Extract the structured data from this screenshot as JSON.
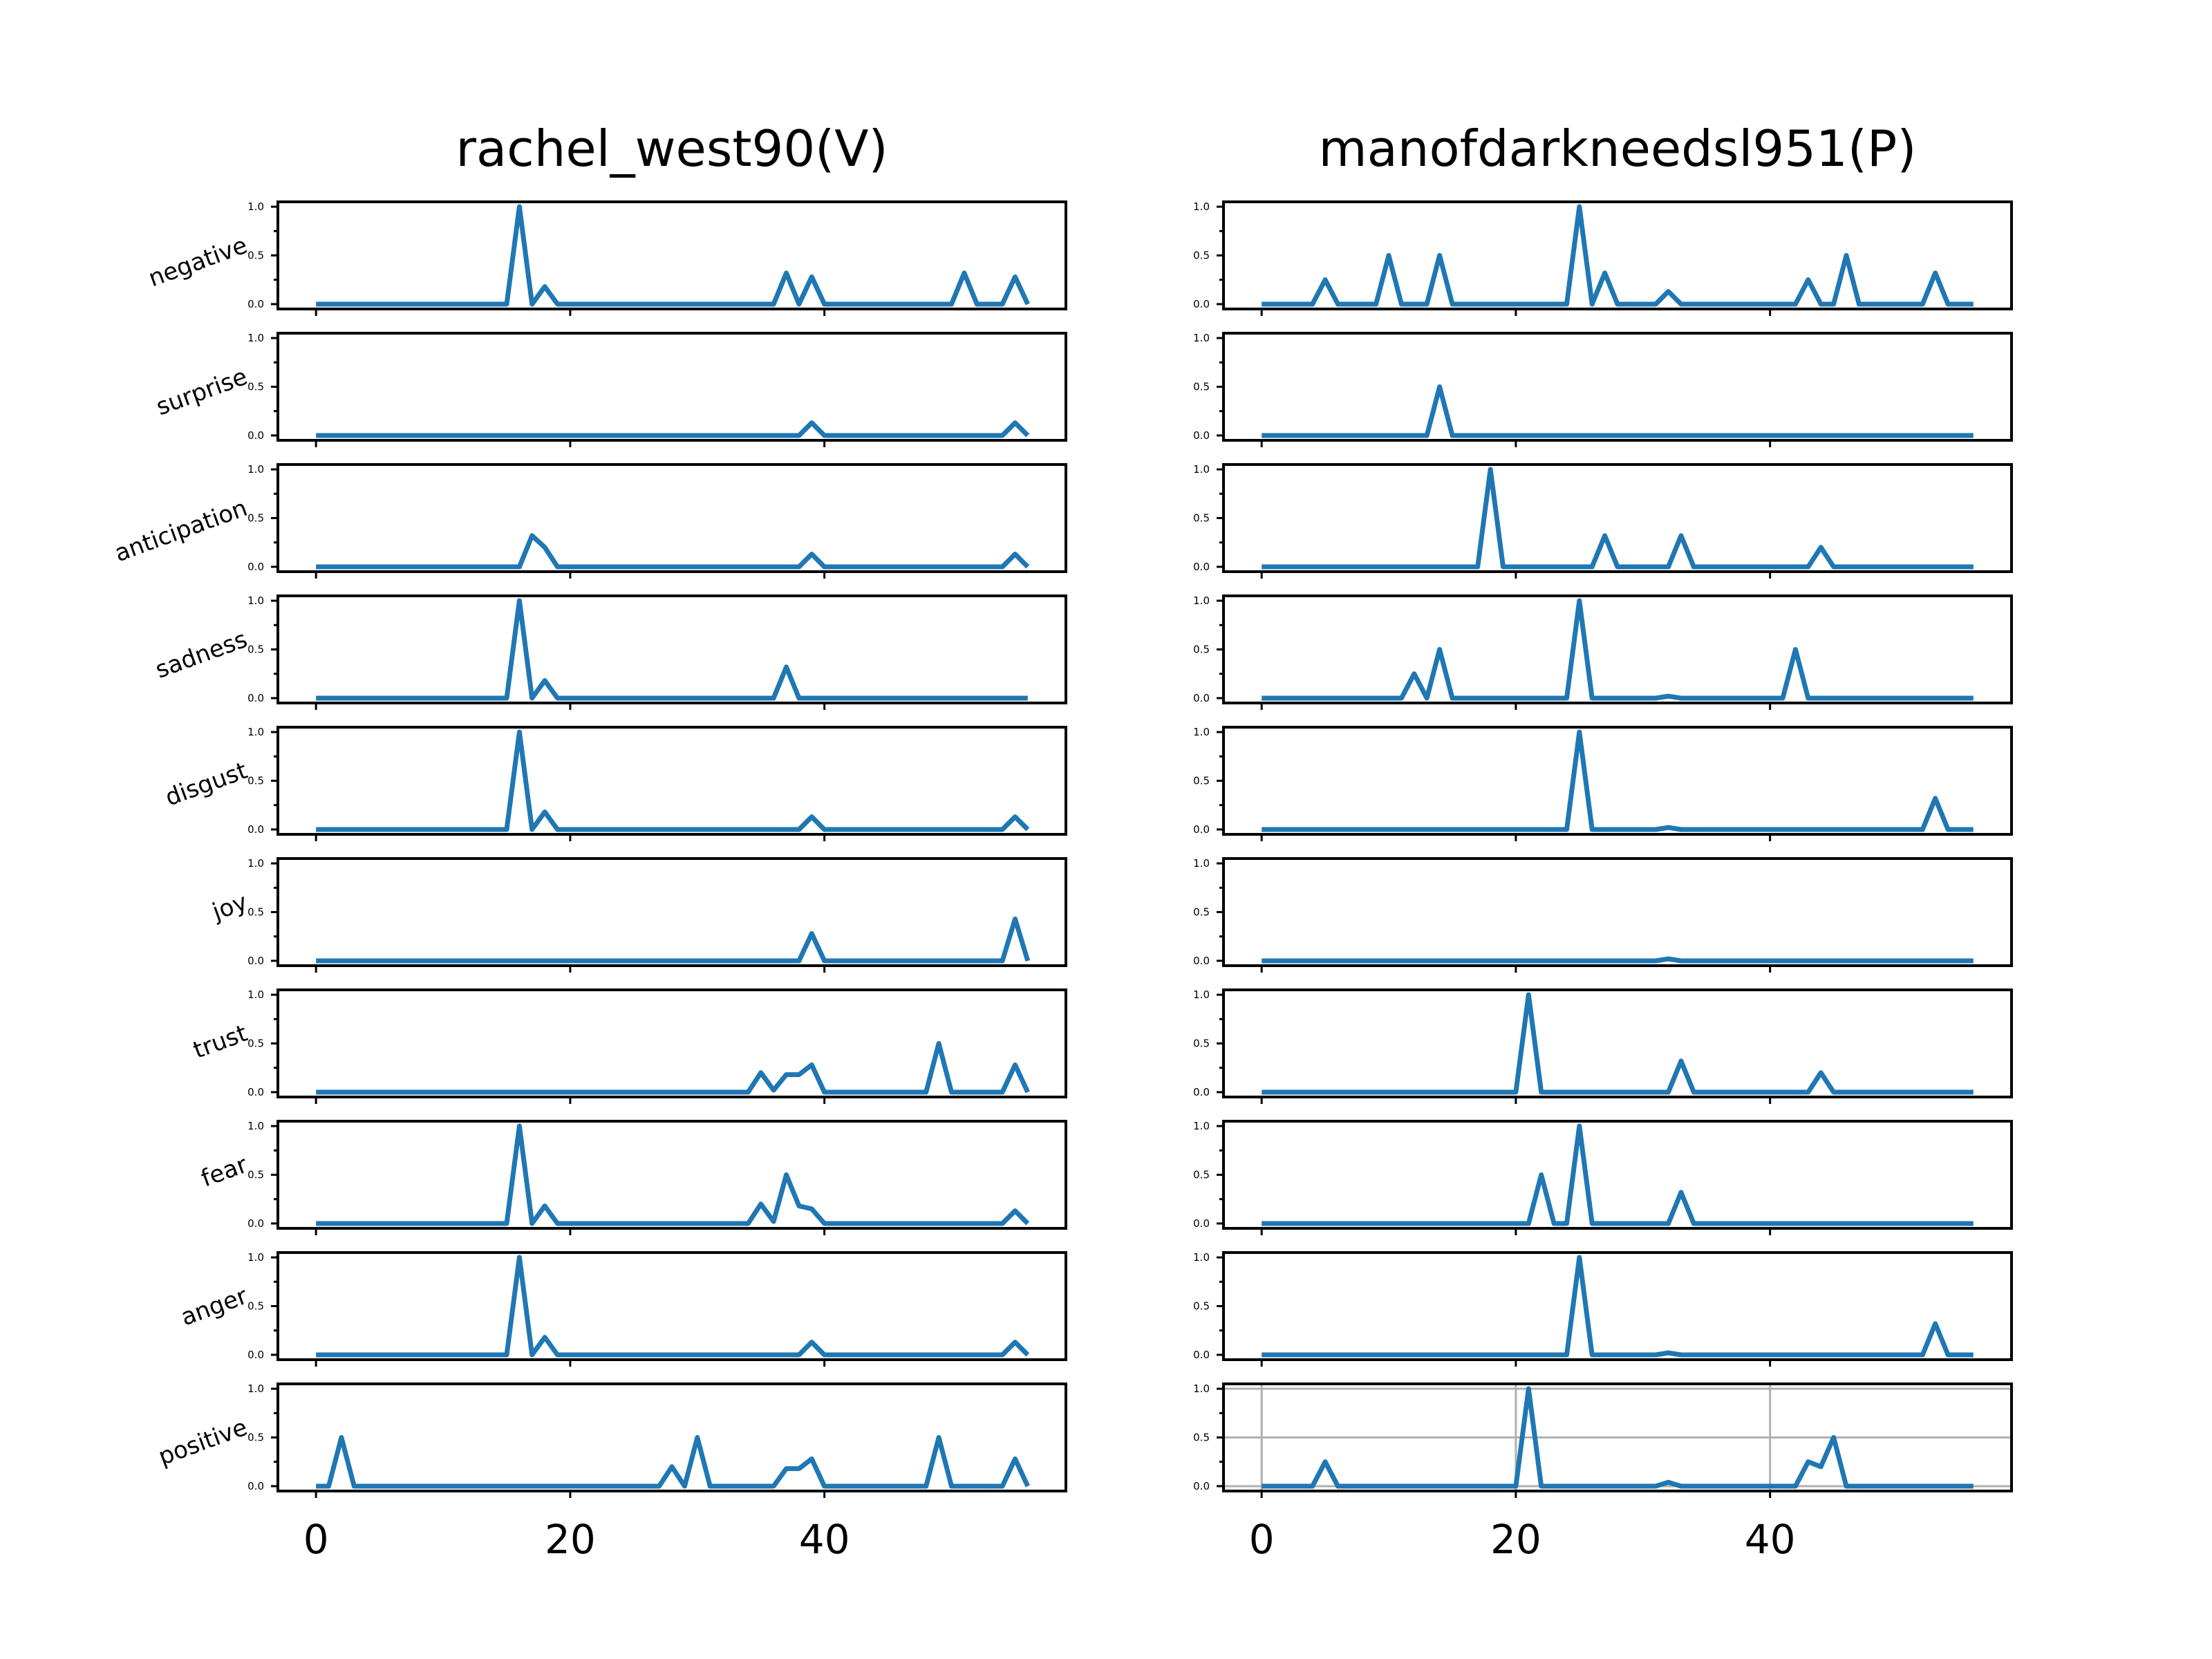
{
  "chart_data": {
    "type": "line",
    "columns": [
      {
        "title": "rachel_west90(V)",
        "xlim": [
          -3,
          59
        ],
        "xticks": [
          0,
          20,
          40
        ],
        "grid_panels": [],
        "series": {
          "negative": [
            [
              0,
              0
            ],
            [
              15,
              0
            ],
            [
              16,
              1.0
            ],
            [
              17,
              0
            ],
            [
              18,
              0.18
            ],
            [
              19,
              0
            ],
            [
              36,
              0
            ],
            [
              37,
              0.32
            ],
            [
              38,
              0
            ],
            [
              39,
              0.28
            ],
            [
              40,
              0
            ],
            [
              50,
              0
            ],
            [
              51,
              0.32
            ],
            [
              52,
              0
            ],
            [
              54,
              0
            ],
            [
              55,
              0.28
            ],
            [
              56,
              0
            ]
          ],
          "surprise": [
            [
              0,
              0
            ],
            [
              38,
              0
            ],
            [
              39,
              0.13
            ],
            [
              40,
              0
            ],
            [
              54,
              0
            ],
            [
              55,
              0.13
            ],
            [
              56,
              0
            ]
          ],
          "anticipation": [
            [
              0,
              0
            ],
            [
              16,
              0
            ],
            [
              17,
              0.32
            ],
            [
              18,
              0.2
            ],
            [
              19,
              0
            ],
            [
              38,
              0
            ],
            [
              39,
              0.13
            ],
            [
              40,
              0
            ],
            [
              54,
              0
            ],
            [
              55,
              0.13
            ],
            [
              56,
              0
            ]
          ],
          "sadness": [
            [
              0,
              0
            ],
            [
              15,
              0
            ],
            [
              16,
              1.0
            ],
            [
              17,
              0
            ],
            [
              18,
              0.18
            ],
            [
              19,
              0
            ],
            [
              36,
              0
            ],
            [
              37,
              0.32
            ],
            [
              38,
              0
            ],
            [
              56,
              0
            ]
          ],
          "disgust": [
            [
              0,
              0
            ],
            [
              15,
              0
            ],
            [
              16,
              1.0
            ],
            [
              17,
              0
            ],
            [
              18,
              0.18
            ],
            [
              19,
              0
            ],
            [
              38,
              0
            ],
            [
              39,
              0.13
            ],
            [
              40,
              0
            ],
            [
              54,
              0
            ],
            [
              55,
              0.13
            ],
            [
              56,
              0
            ]
          ],
          "joy": [
            [
              0,
              0
            ],
            [
              38,
              0
            ],
            [
              39,
              0.28
            ],
            [
              40,
              0
            ],
            [
              54,
              0
            ],
            [
              55,
              0.43
            ],
            [
              56,
              0
            ]
          ],
          "trust": [
            [
              0,
              0
            ],
            [
              34,
              0
            ],
            [
              35,
              0.2
            ],
            [
              36,
              0.02
            ],
            [
              37,
              0.18
            ],
            [
              38,
              0.18
            ],
            [
              39,
              0.28
            ],
            [
              40,
              0
            ],
            [
              48,
              0
            ],
            [
              49,
              0.5
            ],
            [
              50,
              0
            ],
            [
              54,
              0
            ],
            [
              55,
              0.28
            ],
            [
              56,
              0
            ]
          ],
          "fear": [
            [
              0,
              0
            ],
            [
              15,
              0
            ],
            [
              16,
              1.0
            ],
            [
              17,
              0
            ],
            [
              18,
              0.18
            ],
            [
              19,
              0
            ],
            [
              34,
              0
            ],
            [
              35,
              0.2
            ],
            [
              36,
              0.02
            ],
            [
              37,
              0.5
            ],
            [
              38,
              0.18
            ],
            [
              39,
              0.15
            ],
            [
              40,
              0
            ],
            [
              54,
              0
            ],
            [
              55,
              0.13
            ],
            [
              56,
              0
            ]
          ],
          "anger": [
            [
              0,
              0
            ],
            [
              15,
              0
            ],
            [
              16,
              1.0
            ],
            [
              17,
              0
            ],
            [
              18,
              0.18
            ],
            [
              19,
              0
            ],
            [
              38,
              0
            ],
            [
              39,
              0.13
            ],
            [
              40,
              0
            ],
            [
              54,
              0
            ],
            [
              55,
              0.13
            ],
            [
              56,
              0
            ]
          ],
          "positive": [
            [
              0,
              0
            ],
            [
              1,
              0
            ],
            [
              2,
              0.5
            ],
            [
              3,
              0
            ],
            [
              27,
              0
            ],
            [
              28,
              0.2
            ],
            [
              29,
              0
            ],
            [
              30,
              0.5
            ],
            [
              31,
              0
            ],
            [
              36,
              0
            ],
            [
              37,
              0.18
            ],
            [
              38,
              0.18
            ],
            [
              39,
              0.28
            ],
            [
              40,
              0
            ],
            [
              48,
              0
            ],
            [
              49,
              0.5
            ],
            [
              50,
              0
            ],
            [
              54,
              0
            ],
            [
              55,
              0.28
            ],
            [
              56,
              0
            ]
          ]
        }
      },
      {
        "title": "manofdarkneedsl951(P)",
        "xlim": [
          -3,
          59
        ],
        "xticks": [
          0,
          20,
          40
        ],
        "grid_panels": [
          "positive"
        ],
        "series": {
          "negative": [
            [
              0,
              0
            ],
            [
              4,
              0
            ],
            [
              5,
              0.25
            ],
            [
              6,
              0
            ],
            [
              9,
              0
            ],
            [
              10,
              0.5
            ],
            [
              11,
              0
            ],
            [
              13,
              0
            ],
            [
              14,
              0.5
            ],
            [
              15,
              0
            ],
            [
              24,
              0
            ],
            [
              25,
              1.0
            ],
            [
              26,
              0
            ],
            [
              27,
              0.32
            ],
            [
              28,
              0
            ],
            [
              31,
              0
            ],
            [
              32,
              0.13
            ],
            [
              33,
              0
            ],
            [
              42,
              0
            ],
            [
              43,
              0.25
            ],
            [
              44,
              0
            ],
            [
              45,
              0
            ],
            [
              46,
              0.5
            ],
            [
              47,
              0
            ],
            [
              52,
              0
            ],
            [
              53,
              0.32
            ],
            [
              54,
              0
            ],
            [
              56,
              0
            ]
          ],
          "surprise": [
            [
              0,
              0
            ],
            [
              13,
              0
            ],
            [
              14,
              0.5
            ],
            [
              15,
              0
            ],
            [
              56,
              0
            ]
          ],
          "anticipation": [
            [
              0,
              0
            ],
            [
              17,
              0
            ],
            [
              18,
              1.0
            ],
            [
              19,
              0
            ],
            [
              26,
              0
            ],
            [
              27,
              0.32
            ],
            [
              28,
              0
            ],
            [
              32,
              0
            ],
            [
              33,
              0.32
            ],
            [
              34,
              0
            ],
            [
              43,
              0
            ],
            [
              44,
              0.2
            ],
            [
              45,
              0
            ],
            [
              56,
              0
            ]
          ],
          "sadness": [
            [
              0,
              0
            ],
            [
              11,
              0
            ],
            [
              12,
              0.25
            ],
            [
              13,
              0
            ],
            [
              14,
              0.5
            ],
            [
              15,
              0
            ],
            [
              24,
              0
            ],
            [
              25,
              1.0
            ],
            [
              26,
              0
            ],
            [
              31,
              0
            ],
            [
              32,
              0.02
            ],
            [
              33,
              0
            ],
            [
              41,
              0
            ],
            [
              42,
              0.5
            ],
            [
              43,
              0
            ],
            [
              56,
              0
            ]
          ],
          "disgust": [
            [
              0,
              0
            ],
            [
              24,
              0
            ],
            [
              25,
              1.0
            ],
            [
              26,
              0
            ],
            [
              31,
              0
            ],
            [
              32,
              0.02
            ],
            [
              33,
              0
            ],
            [
              52,
              0
            ],
            [
              53,
              0.32
            ],
            [
              54,
              0
            ],
            [
              56,
              0
            ]
          ],
          "joy": [
            [
              0,
              0
            ],
            [
              31,
              0
            ],
            [
              32,
              0.02
            ],
            [
              33,
              0
            ],
            [
              56,
              0
            ]
          ],
          "trust": [
            [
              0,
              0
            ],
            [
              20,
              0
            ],
            [
              21,
              1.0
            ],
            [
              22,
              0
            ],
            [
              32,
              0
            ],
            [
              33,
              0.32
            ],
            [
              34,
              0
            ],
            [
              43,
              0
            ],
            [
              44,
              0.2
            ],
            [
              45,
              0
            ],
            [
              56,
              0
            ]
          ],
          "fear": [
            [
              0,
              0
            ],
            [
              21,
              0
            ],
            [
              22,
              0.5
            ],
            [
              23,
              0
            ],
            [
              24,
              0
            ],
            [
              25,
              1.0
            ],
            [
              26,
              0
            ],
            [
              32,
              0
            ],
            [
              33,
              0.32
            ],
            [
              34,
              0
            ],
            [
              56,
              0
            ]
          ],
          "anger": [
            [
              0,
              0
            ],
            [
              24,
              0
            ],
            [
              25,
              1.0
            ],
            [
              26,
              0
            ],
            [
              31,
              0
            ],
            [
              32,
              0.02
            ],
            [
              33,
              0
            ],
            [
              52,
              0
            ],
            [
              53,
              0.32
            ],
            [
              54,
              0
            ],
            [
              56,
              0
            ]
          ],
          "positive": [
            [
              0,
              0
            ],
            [
              4,
              0
            ],
            [
              5,
              0.25
            ],
            [
              6,
              0
            ],
            [
              20,
              0
            ],
            [
              21,
              1.0
            ],
            [
              22,
              0
            ],
            [
              31,
              0
            ],
            [
              32,
              0.04
            ],
            [
              33,
              0
            ],
            [
              42,
              0
            ],
            [
              43,
              0.25
            ],
            [
              44,
              0.2
            ],
            [
              45,
              0.5
            ],
            [
              46,
              0
            ],
            [
              56,
              0
            ]
          ]
        }
      }
    ],
    "rows": [
      "negative",
      "surprise",
      "anticipation",
      "sadness",
      "disgust",
      "joy",
      "trust",
      "fear",
      "anger",
      "positive"
    ],
    "ylim": [
      -0.05,
      1.05
    ],
    "yticks": [
      "0.0",
      "0.5",
      "1.0"
    ],
    "xtick_labels": [
      "0",
      "20",
      "40"
    ],
    "row_labels_shown": [
      "negative",
      "surprise",
      "anticipation",
      "sadness",
      "disgust",
      "joy",
      "trust",
      "fear",
      "anger",
      "positive"
    ]
  }
}
